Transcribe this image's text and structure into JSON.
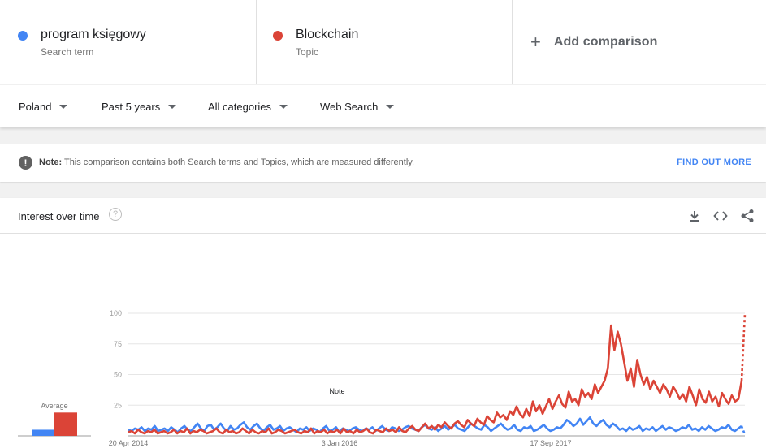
{
  "terms": [
    {
      "name": "program księgowy",
      "type": "Search term",
      "color": "#4285f4"
    },
    {
      "name": "Blockchain",
      "type": "Topic",
      "color": "#db4437"
    }
  ],
  "add_comparison": {
    "icon": "plus-icon",
    "label": "Add comparison"
  },
  "filters": [
    {
      "label": "Poland"
    },
    {
      "label": "Past 5 years"
    },
    {
      "label": "All categories"
    },
    {
      "label": "Web Search"
    }
  ],
  "note": {
    "icon": "exclamation-icon",
    "bold": "Note:",
    "text": "This comparison contains both Search terms and Topics, which are measured differently.",
    "link": "FIND OUT MORE"
  },
  "interest": {
    "title": "Interest over time",
    "help_icon": "question-mark-icon",
    "actions": [
      "download-icon",
      "embed-code-icon",
      "share-icon"
    ]
  },
  "chart_data": {
    "type": "line",
    "y_ticks": [
      "100",
      "75",
      "50",
      "25"
    ],
    "ylim": [
      0,
      100
    ],
    "x_ticks": [
      "20 Apr 2014",
      "3 Jan 2016",
      "17 Sep 2017"
    ],
    "note_marker": "Note",
    "average_label": "Average",
    "averages": [
      5,
      19
    ],
    "series": [
      {
        "name": "program księgowy",
        "color": "#4285f4",
        "values": [
          5,
          4,
          6,
          5,
          7,
          4,
          6,
          5,
          8,
          4,
          5,
          6,
          4,
          7,
          5,
          3,
          6,
          8,
          5,
          4,
          7,
          10,
          6,
          4,
          8,
          9,
          5,
          7,
          10,
          6,
          4,
          8,
          5,
          6,
          9,
          11,
          7,
          5,
          8,
          10,
          6,
          4,
          7,
          9,
          5,
          6,
          8,
          4,
          6,
          7,
          5,
          3,
          6,
          5,
          7,
          4,
          6,
          5,
          3,
          6,
          8,
          4,
          5,
          7,
          3,
          6,
          5,
          4,
          6,
          7,
          5,
          4,
          6,
          5,
          7,
          4,
          6,
          8,
          5,
          4,
          7,
          6,
          4,
          5,
          7,
          8,
          6,
          5,
          4,
          7,
          9,
          6,
          5,
          7,
          4,
          6,
          8,
          5,
          7,
          9,
          6,
          5,
          4,
          7,
          10,
          8,
          6,
          5,
          9,
          7,
          4,
          6,
          8,
          10,
          7,
          5,
          6,
          9,
          5,
          4,
          7,
          6,
          8,
          4,
          5,
          7,
          9,
          6,
          4,
          5,
          7,
          6,
          9,
          13,
          11,
          8,
          10,
          14,
          9,
          12,
          15,
          10,
          8,
          11,
          13,
          9,
          7,
          10,
          8,
          5,
          6,
          4,
          7,
          5,
          6,
          8,
          4,
          6,
          5,
          7,
          4,
          6,
          8,
          5,
          7,
          6,
          4,
          5,
          7,
          6,
          9,
          5,
          6,
          4,
          7,
          5,
          8,
          6,
          4,
          5,
          7,
          6,
          9,
          5,
          4,
          6,
          8,
          1
        ]
      },
      {
        "name": "Blockchain",
        "color": "#db4437",
        "values": [
          3,
          4,
          2,
          5,
          3,
          2,
          4,
          3,
          5,
          2,
          3,
          4,
          2,
          3,
          5,
          2,
          4,
          3,
          6,
          2,
          4,
          3,
          5,
          4,
          2,
          3,
          4,
          6,
          3,
          2,
          5,
          3,
          4,
          2,
          3,
          6,
          4,
          2,
          5,
          3,
          2,
          4,
          3,
          6,
          2,
          3,
          5,
          4,
          2,
          3,
          4,
          5,
          3,
          2,
          4,
          3,
          6,
          2,
          4,
          3,
          5,
          2,
          4,
          3,
          5,
          2,
          6,
          3,
          4,
          2,
          5,
          3,
          4,
          6,
          3,
          2,
          5,
          4,
          3,
          6,
          4,
          5,
          3,
          7,
          4,
          3,
          6,
          8,
          5,
          4,
          7,
          10,
          6,
          8,
          5,
          9,
          7,
          11,
          8,
          6,
          10,
          12,
          9,
          7,
          13,
          10,
          8,
          14,
          11,
          9,
          16,
          13,
          11,
          19,
          15,
          17,
          13,
          20,
          17,
          24,
          18,
          15,
          22,
          16,
          28,
          20,
          25,
          18,
          24,
          30,
          22,
          28,
          33,
          26,
          23,
          36,
          28,
          30,
          25,
          38,
          32,
          35,
          30,
          42,
          35,
          40,
          45,
          55,
          90,
          70,
          85,
          75,
          60,
          45,
          55,
          40,
          62,
          50,
          42,
          48,
          38,
          45,
          40,
          35,
          42,
          38,
          32,
          40,
          36,
          30,
          34,
          28,
          40,
          33,
          25,
          38,
          30,
          27,
          36,
          28,
          32,
          24,
          35,
          30,
          26,
          33,
          28,
          30,
          45,
          100
        ]
      }
    ]
  }
}
